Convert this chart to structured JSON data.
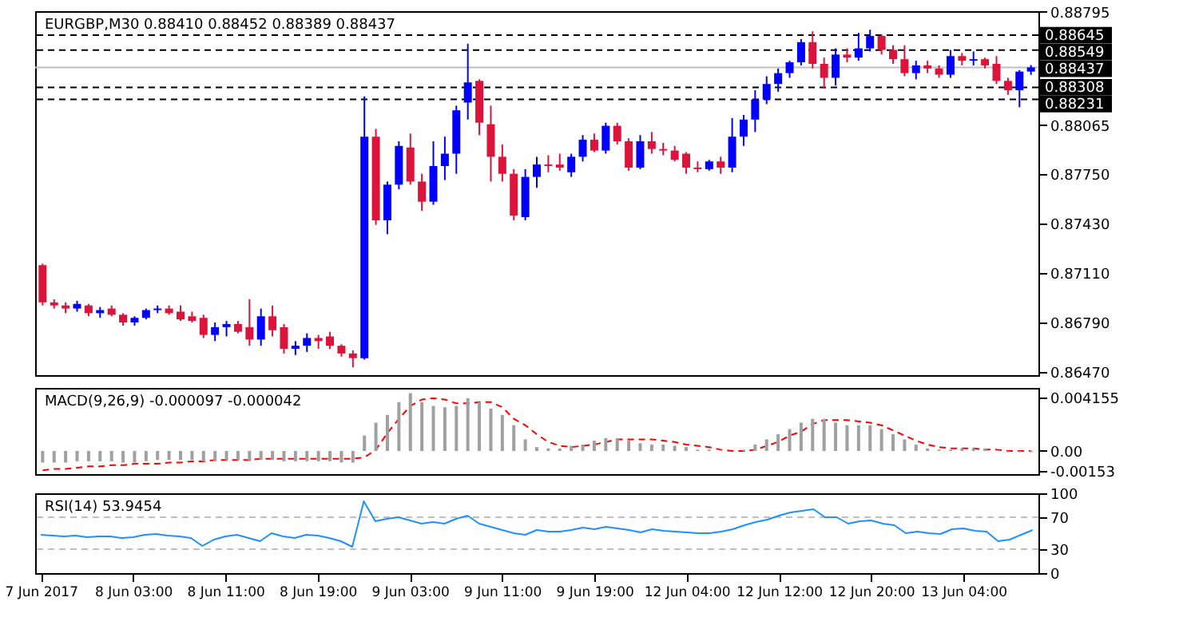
{
  "chart_data": [
    {
      "type": "candlestick",
      "title": "EURGBP,M30 0.88410 0.88452 0.88389 0.88437",
      "categories": [
        null,
        null,
        null,
        null,
        null,
        null,
        null,
        null,
        null,
        null,
        null,
        null,
        null,
        null,
        null,
        null,
        null,
        null,
        null,
        null,
        null,
        null,
        null,
        null,
        null,
        null,
        null,
        null,
        null,
        null,
        null,
        null,
        null,
        null,
        null,
        null,
        null,
        null,
        null,
        null,
        null,
        null,
        null,
        null,
        null,
        null,
        null,
        null,
        null,
        null,
        null,
        null,
        null,
        null,
        null,
        null,
        null,
        null,
        null,
        null,
        null,
        null,
        null,
        null,
        null,
        null,
        null,
        null,
        null,
        null,
        null,
        null,
        null,
        null,
        null,
        null,
        null,
        null,
        null,
        null,
        null,
        null,
        null,
        null,
        null,
        null,
        null
      ],
      "ohlc": [
        [
          0.8716,
          0.8717,
          0.869,
          0.8692
        ],
        [
          0.8692,
          0.8694,
          0.8688,
          0.869
        ],
        [
          0.869,
          0.8692,
          0.8685,
          0.8688
        ],
        [
          0.8688,
          0.8693,
          0.8686,
          0.8691
        ],
        [
          0.869,
          0.8691,
          0.8683,
          0.8685
        ],
        [
          0.8685,
          0.8689,
          0.8682,
          0.8687
        ],
        [
          0.8688,
          0.869,
          0.8683,
          0.8684
        ],
        [
          0.8684,
          0.8685,
          0.8677,
          0.8679
        ],
        [
          0.8679,
          0.8683,
          0.8677,
          0.8682
        ],
        [
          0.8682,
          0.8688,
          0.8681,
          0.8687
        ],
        [
          0.8687,
          0.869,
          0.8685,
          0.8688
        ],
        [
          0.8688,
          0.869,
          0.8684,
          0.8685
        ],
        [
          0.8686,
          0.869,
          0.868,
          0.8681
        ],
        [
          0.8683,
          0.8686,
          0.8679,
          0.868
        ],
        [
          0.8682,
          0.8684,
          0.8669,
          0.8671
        ],
        [
          0.8671,
          0.8679,
          0.8667,
          0.8676
        ],
        [
          0.8676,
          0.868,
          0.867,
          0.8678
        ],
        [
          0.8678,
          0.868,
          0.8672,
          0.8673
        ],
        [
          0.8676,
          0.8694,
          0.8664,
          0.8668
        ],
        [
          0.8668,
          0.8688,
          0.8664,
          0.8683
        ],
        [
          0.8683,
          0.869,
          0.867,
          0.8674
        ],
        [
          0.8676,
          0.8678,
          0.8659,
          0.8662
        ],
        [
          0.8662,
          0.8667,
          0.8658,
          0.8664
        ],
        [
          0.8664,
          0.8672,
          0.866,
          0.8669
        ],
        [
          0.8669,
          0.8671,
          0.8662,
          0.8667
        ],
        [
          0.867,
          0.8673,
          0.8662,
          0.8664
        ],
        [
          0.8664,
          0.8665,
          0.8657,
          0.8659
        ],
        [
          0.8659,
          0.8661,
          0.865,
          0.8656
        ],
        [
          0.8656,
          0.8825,
          0.8655,
          0.8799
        ],
        [
          0.8799,
          0.8804,
          0.8742,
          0.8745
        ],
        [
          0.8745,
          0.877,
          0.8736,
          0.8768
        ],
        [
          0.8768,
          0.8796,
          0.8765,
          0.8793
        ],
        [
          0.8792,
          0.8801,
          0.8768,
          0.877
        ],
        [
          0.877,
          0.8775,
          0.8751,
          0.8757
        ],
        [
          0.8757,
          0.8796,
          0.8755,
          0.878
        ],
        [
          0.878,
          0.8799,
          0.8771,
          0.8788
        ],
        [
          0.8788,
          0.8819,
          0.8775,
          0.8816
        ],
        [
          0.8821,
          0.8859,
          0.881,
          0.8834
        ],
        [
          0.8835,
          0.8836,
          0.88,
          0.8808
        ],
        [
          0.8807,
          0.8819,
          0.877,
          0.8786
        ],
        [
          0.8786,
          0.8794,
          0.877,
          0.8775
        ],
        [
          0.8775,
          0.8778,
          0.8745,
          0.8748
        ],
        [
          0.8747,
          0.8778,
          0.8745,
          0.8773
        ],
        [
          0.8773,
          0.8786,
          0.8766,
          0.8781
        ],
        [
          0.8781,
          0.8787,
          0.8776,
          0.878
        ],
        [
          0.8781,
          0.8788,
          0.8777,
          0.8779
        ],
        [
          0.8776,
          0.8788,
          0.8773,
          0.8786
        ],
        [
          0.8786,
          0.88,
          0.8783,
          0.8797
        ],
        [
          0.8797,
          0.8801,
          0.8789,
          0.879
        ],
        [
          0.879,
          0.8808,
          0.8788,
          0.8806
        ],
        [
          0.8806,
          0.8808,
          0.8794,
          0.8796
        ],
        [
          0.8796,
          0.8798,
          0.8777,
          0.8779
        ],
        [
          0.8779,
          0.88,
          0.8778,
          0.8796
        ],
        [
          0.8796,
          0.8802,
          0.8788,
          0.8791
        ],
        [
          0.8791,
          0.8795,
          0.8787,
          0.879
        ],
        [
          0.879,
          0.8793,
          0.8783,
          0.8784
        ],
        [
          0.8788,
          0.8789,
          0.8775,
          0.8779
        ],
        [
          0.8779,
          0.8783,
          0.8776,
          0.8778
        ],
        [
          0.8778,
          0.8784,
          0.8777,
          0.8783
        ],
        [
          0.8783,
          0.8786,
          0.8775,
          0.8779
        ],
        [
          0.8779,
          0.8811,
          0.8776,
          0.8799
        ],
        [
          0.8799,
          0.8813,
          0.8793,
          0.881
        ],
        [
          0.881,
          0.8829,
          0.8802,
          0.8823
        ],
        [
          0.8823,
          0.8838,
          0.882,
          0.8833
        ],
        [
          0.8833,
          0.8843,
          0.8828,
          0.884
        ],
        [
          0.884,
          0.8848,
          0.8837,
          0.8847
        ],
        [
          0.8847,
          0.8862,
          0.8845,
          0.886
        ],
        [
          0.886,
          0.8867,
          0.8843,
          0.8846
        ],
        [
          0.8846,
          0.885,
          0.883,
          0.8837
        ],
        [
          0.8837,
          0.8856,
          0.8832,
          0.8852
        ],
        [
          0.8852,
          0.8856,
          0.8847,
          0.885
        ],
        [
          0.885,
          0.8866,
          0.8848,
          0.8856
        ],
        [
          0.8856,
          0.8868,
          0.8854,
          0.8864
        ],
        [
          0.8864,
          0.8865,
          0.8852,
          0.8855
        ],
        [
          0.8855,
          0.8858,
          0.8846,
          0.8849
        ],
        [
          0.8849,
          0.8858,
          0.8838,
          0.884
        ],
        [
          0.884,
          0.8848,
          0.8836,
          0.8845
        ],
        [
          0.8845,
          0.8848,
          0.884,
          0.8843
        ],
        [
          0.8843,
          0.8845,
          0.8837,
          0.8839
        ],
        [
          0.8839,
          0.8855,
          0.8837,
          0.8851
        ],
        [
          0.8851,
          0.8853,
          0.8845,
          0.8848
        ],
        [
          0.8848,
          0.8854,
          0.8845,
          0.8849
        ],
        [
          0.8849,
          0.885,
          0.8843,
          0.8845
        ],
        [
          0.8846,
          0.8851,
          0.8833,
          0.8835
        ],
        [
          0.8835,
          0.8837,
          0.8826,
          0.8829
        ],
        [
          0.8829,
          0.8842,
          0.8818,
          0.8841
        ],
        [
          0.8841,
          0.88452,
          0.88389,
          0.88437
        ]
      ],
      "colors": [
        "#dc143c",
        "#dc143c",
        "#dc143c",
        "#0000ff",
        "#dc143c",
        "#0000ff",
        "#dc143c",
        "#dc143c",
        "#0000ff",
        "#0000ff",
        "#0000ff",
        "#dc143c",
        "#dc143c",
        "#dc143c",
        "#dc143c",
        "#0000ff",
        "#0000ff",
        "#dc143c",
        "#dc143c",
        "#0000ff",
        "#dc143c",
        "#dc143c",
        "#0000ff",
        "#0000ff",
        "#dc143c",
        "#dc143c",
        "#dc143c",
        "#dc143c",
        "#0000ff",
        "#dc143c",
        "#0000ff",
        "#0000ff",
        "#dc143c",
        "#dc143c",
        "#0000ff",
        "#0000ff",
        "#0000ff",
        "#0000ff",
        "#dc143c",
        "#dc143c",
        "#dc143c",
        "#dc143c",
        "#0000ff",
        "#0000ff",
        "#dc143c",
        "#dc143c",
        "#0000ff",
        "#0000ff",
        "#dc143c",
        "#0000ff",
        "#dc143c",
        "#dc143c",
        "#0000ff",
        "#dc143c",
        "#dc143c",
        "#dc143c",
        "#dc143c",
        "#dc143c",
        "#0000ff",
        "#dc143c",
        "#0000ff",
        "#0000ff",
        "#0000ff",
        "#0000ff",
        "#0000ff",
        "#0000ff",
        "#0000ff",
        "#dc143c",
        "#dc143c",
        "#0000ff",
        "#dc143c",
        "#0000ff",
        "#0000ff",
        "#dc143c",
        "#dc143c",
        "#dc143c",
        "#0000ff",
        "#dc143c",
        "#dc143c",
        "#0000ff",
        "#dc143c",
        "#0000ff",
        "#dc143c",
        "#dc143c",
        "#dc143c",
        "#0000ff",
        "#0000ff"
      ],
      "ylim": [
        0.8645,
        0.888
      ],
      "yticks": [
        {
          "value": 0.8647,
          "label": "0.86470"
        },
        {
          "value": 0.8679,
          "label": "0.86790"
        },
        {
          "value": 0.8711,
          "label": "0.87110"
        },
        {
          "value": 0.8743,
          "label": "0.87430"
        },
        {
          "value": 0.8775,
          "label": "0.87750"
        },
        {
          "value": 0.88065,
          "label": "0.88065"
        },
        {
          "value": 0.88795,
          "label": "0.88795"
        }
      ],
      "ref_lines": [
        {
          "axis": "y",
          "value": 0.88645,
          "label": "0.88645",
          "color": "#000000",
          "line_style": "dashed"
        },
        {
          "axis": "y",
          "value": 0.88549,
          "label": "0.88549",
          "color": "#000000",
          "line_style": "dashed"
        },
        {
          "axis": "y",
          "value": 0.88437,
          "label": "0.88437",
          "color": "#c0c0c0",
          "line_style": "solid"
        },
        {
          "axis": "y",
          "value": 0.88308,
          "label": "0.88308",
          "color": "#000000",
          "line_style": "dashed"
        },
        {
          "axis": "y",
          "value": 0.88231,
          "label": "0.88231",
          "color": "#000000",
          "line_style": "dashed"
        }
      ],
      "tick_labels": "y"
    },
    {
      "type": "bar",
      "title": "MACD(9,26,9) -0.000097 -0.000042",
      "categories": [
        null,
        null,
        null,
        null,
        null,
        null,
        null,
        null,
        null,
        null,
        null,
        null,
        null,
        null,
        null,
        null,
        null,
        null,
        null,
        null,
        null,
        null,
        null,
        null,
        null,
        null,
        null,
        null,
        null,
        null,
        null,
        null,
        null,
        null,
        null,
        null,
        null,
        null,
        null,
        null,
        null,
        null,
        null,
        null,
        null,
        null,
        null,
        null,
        null,
        null,
        null,
        null,
        null,
        null,
        null,
        null,
        null,
        null,
        null,
        null,
        null,
        null,
        null,
        null,
        null,
        null,
        null,
        null,
        null,
        null,
        null,
        null,
        null,
        null,
        null,
        null,
        null,
        null,
        null,
        null,
        null,
        null,
        null,
        null,
        null,
        null,
        null
      ],
      "series": [
        {
          "type": "bar",
          "color": "#a0a0a0",
          "values": [
            -0.0009,
            -0.0009,
            -0.0009,
            -0.0008,
            -0.0008,
            -0.0008,
            -0.0008,
            -0.0009,
            -0.0009,
            -0.0008,
            -0.0007,
            -0.0007,
            -0.0007,
            -0.0007,
            -0.0008,
            -0.0008,
            -0.0007,
            -0.0007,
            -0.0008,
            -0.0007,
            -0.0007,
            -0.0008,
            -0.0008,
            -0.0008,
            -0.0008,
            -0.0008,
            -0.0009,
            -0.0009,
            0.0012,
            0.0022,
            0.0028,
            0.0038,
            0.0045,
            0.0038,
            0.0035,
            0.0034,
            0.0035,
            0.0041,
            0.0038,
            0.0033,
            0.0028,
            0.002,
            0.0009,
            0.0003,
            0.0002,
            0.0002,
            0.0004,
            0.0005,
            0.0008,
            0.001,
            0.001,
            0.0008,
            0.0006,
            0.0005,
            0.0005,
            0.0004,
            0.0003,
            0.0001,
            0.0001,
            0,
            0,
            0.0001,
            0.0005,
            0.0009,
            0.0013,
            0.0017,
            0.0022,
            0.0025,
            0.0025,
            0.0022,
            0.002,
            0.002,
            0.002,
            0.0017,
            0.0013,
            0.0009,
            0.0005,
            0.0002,
            0.0001,
            0.0001,
            0.0002,
            0.0002,
            0.0002,
            0,
            -0.0001,
            -0.0001,
            -0.0001
          ]
        },
        {
          "type": "line",
          "color": "#ff0000",
          "line_style": "dashed",
          "values": [
            -0.0015,
            -0.0014,
            -0.0014,
            -0.0013,
            -0.0012,
            -0.0012,
            -0.0011,
            -0.0011,
            -0.001,
            -0.001,
            -0.001,
            -0.0009,
            -0.0009,
            -0.0008,
            -0.0008,
            -0.0007,
            -0.0007,
            -0.0007,
            -0.0007,
            -0.0006,
            -0.0006,
            -0.0006,
            -0.0006,
            -0.0006,
            -0.0006,
            -0.0006,
            -0.0006,
            -0.0006,
            -0.0005,
            0.0001,
            0.0014,
            0.0025,
            0.0035,
            0.004,
            0.0041,
            0.004,
            0.0037,
            0.0037,
            0.0038,
            0.0038,
            0.0034,
            0.0025,
            0.002,
            0.0013,
            0.0007,
            0.0004,
            0.0003,
            0.0004,
            0.0005,
            0.0007,
            0.0009,
            0.0009,
            0.0009,
            0.0009,
            0.0008,
            0.0007,
            0.0005,
            0.0004,
            0.0003,
            0.0001,
            0,
            0,
            0.0001,
            0.0004,
            0.0007,
            0.0012,
            0.0015,
            0.0021,
            0.0024,
            0.0024,
            0.0024,
            0.0023,
            0.0022,
            0.002,
            0.0016,
            0.0012,
            0.0008,
            0.0005,
            0.0003,
            0.0002,
            0.0002,
            0.0002,
            0.0001,
            0.0001,
            0,
            0,
            0
          ]
        }
      ],
      "ylim": [
        -0.0018,
        0.0049
      ],
      "yticks": [
        {
          "value": 0.004155,
          "label": "0.004155"
        },
        {
          "value": 0,
          "label": "0.00"
        },
        {
          "value": -0.00153,
          "label": "-0.00153"
        }
      ],
      "tick_labels": "y"
    },
    {
      "type": "line",
      "title": "RSI(14) 53.9454",
      "categories": [
        "7 Jun 2017",
        null,
        null,
        null,
        null,
        null,
        null,
        null,
        "8 Jun 03:00",
        null,
        null,
        null,
        null,
        null,
        null,
        null,
        "8 Jun 11:00",
        null,
        null,
        null,
        null,
        null,
        null,
        null,
        "8 Jun 19:00",
        null,
        null,
        null,
        null,
        null,
        null,
        null,
        "9 Jun 03:00",
        null,
        null,
        null,
        null,
        null,
        null,
        null,
        "9 Jun 11:00",
        null,
        null,
        null,
        null,
        null,
        null,
        null,
        "9 Jun 19:00",
        null,
        null,
        null,
        null,
        null,
        null,
        null,
        "12 Jun 04:00",
        null,
        null,
        null,
        null,
        null,
        null,
        null,
        "12 Jun 12:00",
        null,
        null,
        null,
        null,
        null,
        null,
        null,
        "12 Jun 20:00",
        null,
        null,
        null,
        null,
        null,
        null,
        null,
        "13 Jun 04:00",
        null,
        null,
        null,
        null,
        null,
        null
      ],
      "series": [
        {
          "color": "#1e90ff",
          "values": [
            48,
            47,
            46,
            47,
            45,
            46,
            46,
            44,
            45,
            48,
            49,
            47,
            46,
            44,
            34,
            42,
            46,
            48,
            44,
            40,
            50,
            46,
            44,
            48,
            47,
            44,
            40,
            33,
            90,
            65,
            68,
            70,
            66,
            62,
            64,
            62,
            68,
            72,
            62,
            58,
            54,
            50,
            48,
            54,
            52,
            52,
            54,
            57,
            55,
            58,
            56,
            54,
            51,
            55,
            53,
            52,
            51,
            50,
            50,
            52,
            55,
            60,
            64,
            67,
            72,
            76,
            78,
            80,
            70,
            70,
            62,
            65,
            66,
            62,
            60,
            50,
            52,
            50,
            49,
            55,
            56,
            53,
            52,
            40,
            42,
            48,
            54
          ]
        }
      ],
      "ylim": [
        0,
        100
      ],
      "yticks": [
        100,
        70,
        30,
        0
      ],
      "ref_lines": [
        {
          "axis": "y",
          "value": 70,
          "color": "#c0c0c0",
          "line_style": "dashed"
        },
        {
          "axis": "y",
          "value": 30,
          "color": "#c0c0c0",
          "line_style": "dashed"
        }
      ]
    }
  ]
}
